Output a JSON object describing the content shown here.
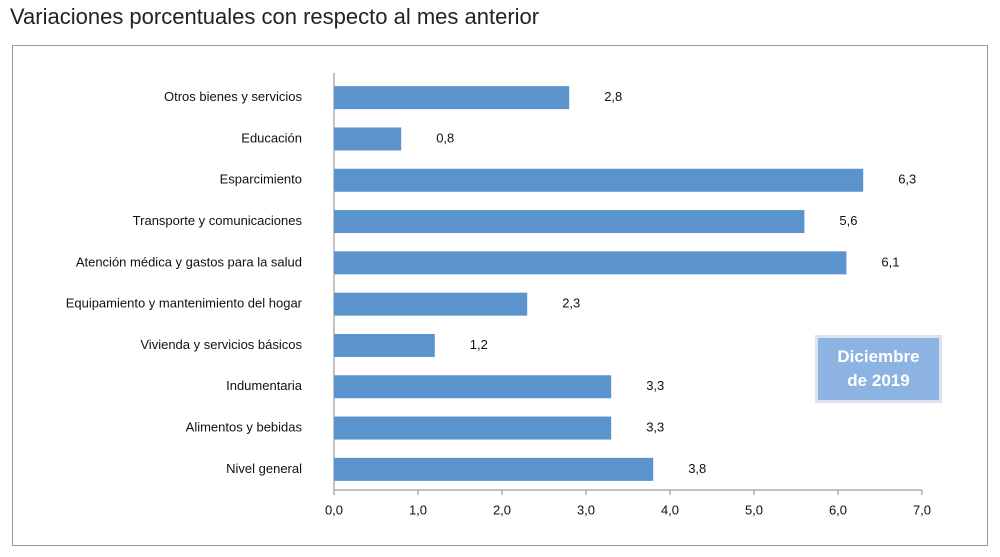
{
  "chart_data": {
    "type": "barh",
    "title": "Variaciones porcentuales con respecto al mes anterior",
    "categories": [
      "Otros bienes y servicios",
      "Educación",
      "Esparcimiento",
      "Transporte y comunicaciones",
      "Atención médica y gastos para la salud",
      "Equipamiento y  mantenimiento del hogar",
      "Vivienda y servicios básicos",
      "Indumentaria",
      "Alimentos y bebidas",
      "Nivel  general"
    ],
    "values": [
      2.8,
      0.8,
      6.3,
      5.6,
      6.1,
      2.3,
      1.2,
      3.3,
      3.3,
      3.8
    ],
    "value_labels": [
      "2,8",
      "0,8",
      "6,3",
      "5,6",
      "6,1",
      "2,3",
      "1,2",
      "3,3",
      "3,3",
      "3,8"
    ],
    "color": "#5b93cd",
    "xlim": [
      0,
      7
    ],
    "xticks": [
      {
        "value": 0,
        "label": "0,0"
      },
      {
        "value": 1,
        "label": "1,0"
      },
      {
        "value": 2,
        "label": "2,0"
      },
      {
        "value": 3,
        "label": "3,0"
      },
      {
        "value": 4,
        "label": "4,0"
      },
      {
        "value": 5,
        "label": "5,0"
      },
      {
        "value": 6,
        "label": "6,0"
      },
      {
        "value": 7,
        "label": "7,0"
      }
    ],
    "annotation": "Diciembre de 2019"
  }
}
